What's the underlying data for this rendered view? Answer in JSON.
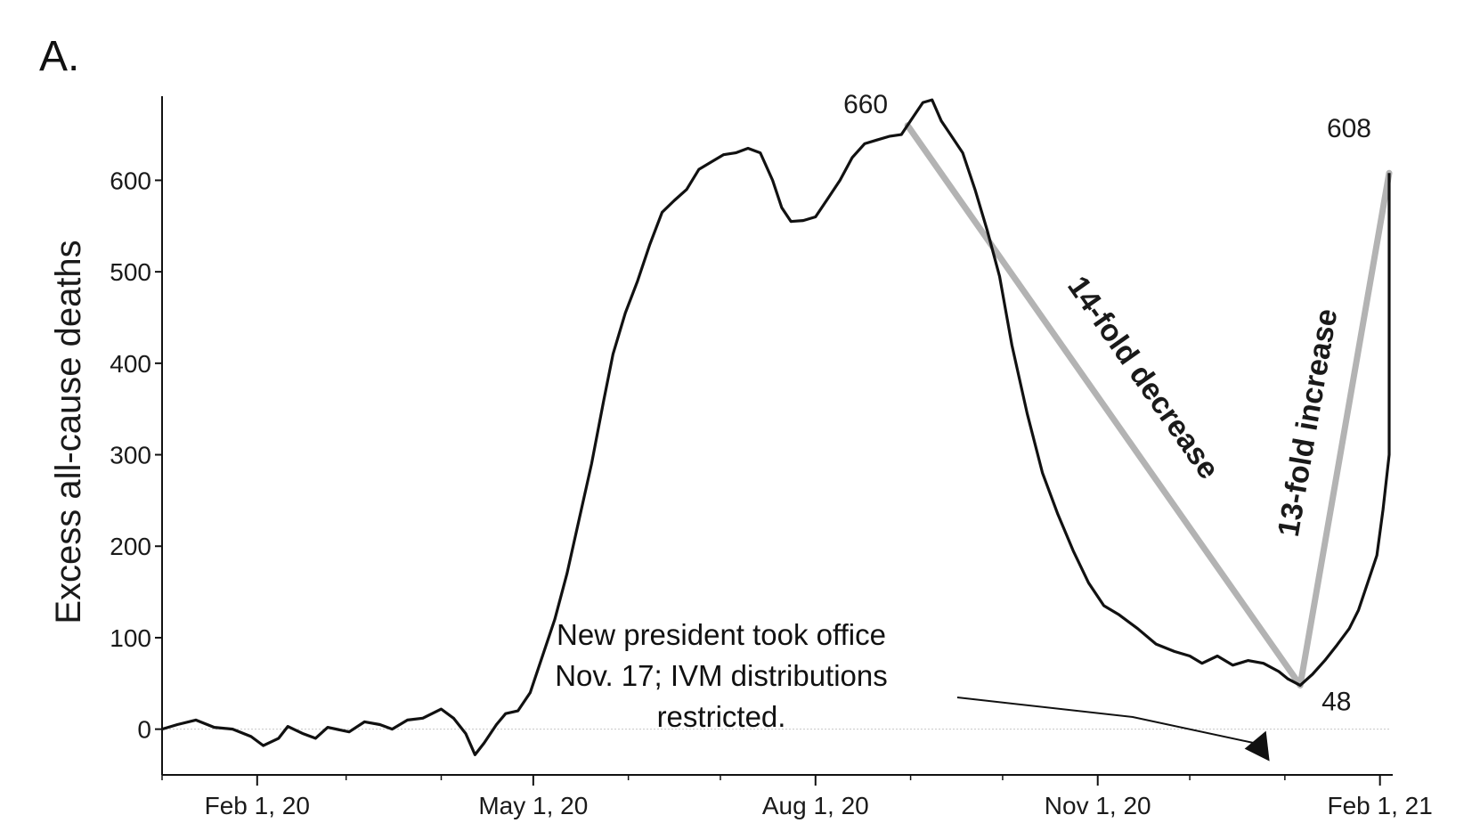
{
  "panel_label": "A.",
  "chart_data": {
    "type": "line",
    "title": "",
    "ylabel": "Excess all-cause deaths",
    "xlabel": "",
    "ylim": [
      -50,
      690
    ],
    "xlim": [
      "2020-01-01",
      "2021-02-04"
    ],
    "yticks": [
      0,
      100,
      200,
      300,
      400,
      500,
      600
    ],
    "xticks": [
      {
        "date": "2020-02-01",
        "label": "Feb 1, 20"
      },
      {
        "date": "2020-05-01",
        "label": "May 1, 20"
      },
      {
        "date": "2020-08-01",
        "label": "Aug 1, 20"
      },
      {
        "date": "2020-11-01",
        "label": "Nov 1, 20"
      },
      {
        "date": "2021-02-01",
        "label": "Feb 1, 21"
      }
    ],
    "zero_line": true,
    "series": [
      {
        "color": "#111111",
        "points": [
          [
            "2020-01-01",
            0
          ],
          [
            "2020-01-06",
            5
          ],
          [
            "2020-01-12",
            10
          ],
          [
            "2020-01-18",
            2
          ],
          [
            "2020-01-24",
            0
          ],
          [
            "2020-01-30",
            -8
          ],
          [
            "2020-02-03",
            -18
          ],
          [
            "2020-02-08",
            -10
          ],
          [
            "2020-02-11",
            3
          ],
          [
            "2020-02-16",
            -5
          ],
          [
            "2020-02-20",
            -10
          ],
          [
            "2020-02-24",
            2
          ],
          [
            "2020-03-02",
            -3
          ],
          [
            "2020-03-07",
            8
          ],
          [
            "2020-03-12",
            5
          ],
          [
            "2020-03-16",
            0
          ],
          [
            "2020-03-21",
            10
          ],
          [
            "2020-03-26",
            12
          ],
          [
            "2020-04-01",
            22
          ],
          [
            "2020-04-05",
            12
          ],
          [
            "2020-04-09",
            -5
          ],
          [
            "2020-04-12",
            -28
          ],
          [
            "2020-04-15",
            -15
          ],
          [
            "2020-04-19",
            5
          ],
          [
            "2020-04-22",
            17
          ],
          [
            "2020-04-26",
            20
          ],
          [
            "2020-04-30",
            40
          ],
          [
            "2020-05-04",
            80
          ],
          [
            "2020-05-08",
            120
          ],
          [
            "2020-05-12",
            170
          ],
          [
            "2020-05-16",
            230
          ],
          [
            "2020-05-20",
            290
          ],
          [
            "2020-05-24",
            360
          ],
          [
            "2020-05-27",
            410
          ],
          [
            "2020-05-31",
            455
          ],
          [
            "2020-06-04",
            490
          ],
          [
            "2020-06-08",
            530
          ],
          [
            "2020-06-12",
            565
          ],
          [
            "2020-06-16",
            578
          ],
          [
            "2020-06-20",
            590
          ],
          [
            "2020-06-24",
            612
          ],
          [
            "2020-06-28",
            620
          ],
          [
            "2020-07-02",
            628
          ],
          [
            "2020-07-06",
            630
          ],
          [
            "2020-07-10",
            635
          ],
          [
            "2020-07-14",
            630
          ],
          [
            "2020-07-18",
            600
          ],
          [
            "2020-07-21",
            570
          ],
          [
            "2020-07-24",
            555
          ],
          [
            "2020-07-28",
            556
          ],
          [
            "2020-08-01",
            560
          ],
          [
            "2020-08-05",
            580
          ],
          [
            "2020-08-09",
            600
          ],
          [
            "2020-08-13",
            625
          ],
          [
            "2020-08-17",
            640
          ],
          [
            "2020-08-21",
            644
          ],
          [
            "2020-08-25",
            648
          ],
          [
            "2020-08-29",
            650
          ],
          [
            "2020-09-02",
            670
          ],
          [
            "2020-09-05",
            685
          ],
          [
            "2020-09-08",
            688
          ],
          [
            "2020-09-11",
            665
          ],
          [
            "2020-09-14",
            650
          ],
          [
            "2020-09-18",
            630
          ],
          [
            "2020-09-22",
            590
          ],
          [
            "2020-09-26",
            545
          ],
          [
            "2020-09-30",
            495
          ],
          [
            "2020-10-04",
            420
          ],
          [
            "2020-10-09",
            345
          ],
          [
            "2020-10-14",
            280
          ],
          [
            "2020-10-19",
            235
          ],
          [
            "2020-10-24",
            195
          ],
          [
            "2020-10-29",
            160
          ],
          [
            "2020-11-03",
            135
          ],
          [
            "2020-11-08",
            125
          ],
          [
            "2020-11-14",
            110
          ],
          [
            "2020-11-20",
            93
          ],
          [
            "2020-11-26",
            85
          ],
          [
            "2020-12-01",
            80
          ],
          [
            "2020-12-05",
            72
          ],
          [
            "2020-12-10",
            80
          ],
          [
            "2020-12-15",
            70
          ],
          [
            "2020-12-20",
            75
          ],
          [
            "2020-12-25",
            72
          ],
          [
            "2020-12-30",
            63
          ],
          [
            "2021-01-02",
            55
          ],
          [
            "2021-01-06",
            48
          ],
          [
            "2021-01-10",
            60
          ],
          [
            "2021-01-14",
            75
          ],
          [
            "2021-01-18",
            92
          ],
          [
            "2021-01-22",
            110
          ],
          [
            "2021-01-25",
            130
          ],
          [
            "2021-01-28",
            160
          ],
          [
            "2021-01-31",
            190
          ],
          [
            "2021-02-02",
            240
          ],
          [
            "2021-02-04",
            300
          ],
          [
            "2021-02-04",
            608
          ]
        ]
      }
    ],
    "trend_lines": [
      {
        "from": [
          "2020-08-31",
          660
        ],
        "to": [
          "2021-01-06",
          48
        ],
        "color": "#b3b3b3",
        "label": "14-fold decrease"
      },
      {
        "from": [
          "2021-01-06",
          48
        ],
        "to": [
          "2021-02-04",
          608
        ],
        "color": "#b3b3b3",
        "label": "13-fold increase"
      }
    ],
    "point_labels": [
      {
        "date": "2020-08-31",
        "value": 660,
        "text": "660"
      },
      {
        "date": "2021-02-04",
        "value": 608,
        "text": "608"
      },
      {
        "date": "2021-01-06",
        "value": 48,
        "text": "48"
      }
    ],
    "annotation": {
      "lines": [
        "New president took office",
        "Nov. 17; IVM distributions",
        "restricted."
      ],
      "arrow_to": [
        "2020-12-27",
        -35
      ]
    }
  }
}
